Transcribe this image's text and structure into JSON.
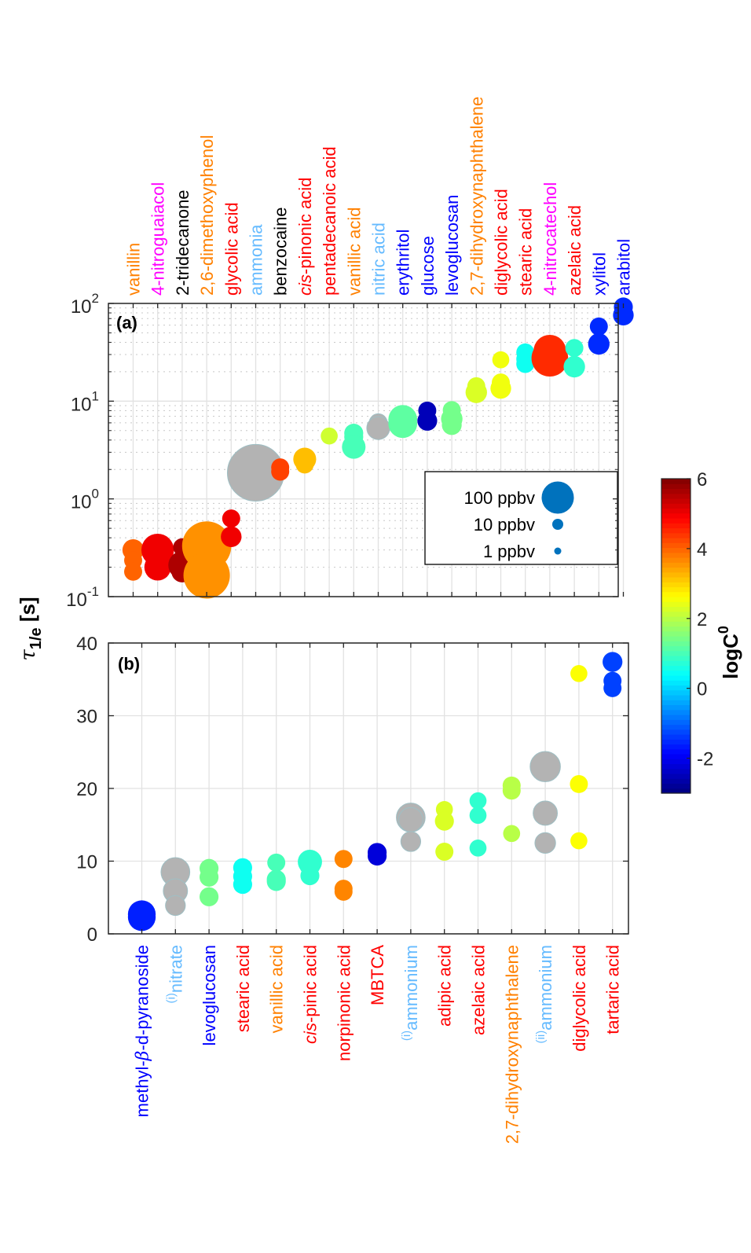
{
  "chart_data": [
    {
      "panel": "(a)",
      "type": "scatter",
      "yscale": "log",
      "ylim": [
        0.1,
        100
      ],
      "ytick_labels": [
        {
          "base": "10",
          "exp": "-1",
          "value": 0.1
        },
        {
          "base": "10",
          "exp": "0",
          "value": 1
        },
        {
          "base": "10",
          "exp": "1",
          "value": 10
        },
        {
          "base": "10",
          "exp": "2",
          "value": 100
        }
      ],
      "grid": "major+minor",
      "label_position": "top",
      "categories": [
        {
          "label": "vanillin",
          "color": "#FF8000"
        },
        {
          "label": "4-nitroguaiacol",
          "color": "#FF00FF"
        },
        {
          "label": "2-tridecanone",
          "color": "#000000"
        },
        {
          "label": "2,6-dimethoxyphenol",
          "color": "#FF8000"
        },
        {
          "label": "glycolic acid",
          "color": "#FF0000"
        },
        {
          "label": "ammonia",
          "color": "#66BBFF"
        },
        {
          "label": "benzocaine",
          "color": "#000000"
        },
        {
          "label": "cis-pinonic acid",
          "color": "#FF0000",
          "italic_prefix": "cis",
          "rest": "-pinonic acid"
        },
        {
          "label": "pentadecanoic acid",
          "color": "#FF0000"
        },
        {
          "label": "vanillic acid",
          "color": "#FF8000"
        },
        {
          "label": "nitric acid",
          "color": "#66BBFF"
        },
        {
          "label": "erythritol",
          "color": "#0000FF"
        },
        {
          "label": "glucose",
          "color": "#0000FF"
        },
        {
          "label": "levoglucosan",
          "color": "#0000FF"
        },
        {
          "label": "2,7-dihydroxynaphthalene",
          "color": "#FF8000"
        },
        {
          "label": "diglycolic acid",
          "color": "#FF0000"
        },
        {
          "label": "stearic acid",
          "color": "#FF0000"
        },
        {
          "label": "4-nitrocatechol",
          "color": "#FF00FF"
        },
        {
          "label": "azelaic acid",
          "color": "#FF0000"
        },
        {
          "label": "xylitol",
          "color": "#0000FF"
        },
        {
          "label": "arabitol",
          "color": "#0000FF"
        }
      ],
      "points": [
        {
          "cat": 0,
          "y": 0.3,
          "ppbv": 10,
          "logC0": 4.0
        },
        {
          "cat": 0,
          "y": 0.235,
          "ppbv": 6,
          "logC0": 4.0
        },
        {
          "cat": 0,
          "y": 0.18,
          "ppbv": 6,
          "logC0": 4.0
        },
        {
          "cat": 1,
          "y": 0.3,
          "ppbv": 30,
          "logC0": 5.0
        },
        {
          "cat": 1,
          "y": 0.2,
          "ppbv": 18,
          "logC0": 5.0
        },
        {
          "cat": 2,
          "y": 0.32,
          "ppbv": 6,
          "logC0": 5.6
        },
        {
          "cat": 2,
          "y": 0.21,
          "ppbv": 20,
          "logC0": 5.6
        },
        {
          "cat": 2,
          "y": 0.18,
          "ppbv": 10,
          "logC0": 5.6
        },
        {
          "cat": 3,
          "y": 0.33,
          "ppbv": 80,
          "logC0": 3.6
        },
        {
          "cat": 3,
          "y": 0.2,
          "ppbv": 8,
          "logC0": 3.6
        },
        {
          "cat": 3,
          "y": 0.165,
          "ppbv": 70,
          "logC0": 3.6
        },
        {
          "cat": 4,
          "y": 0.63,
          "ppbv": 6,
          "logC0": 5.0
        },
        {
          "cat": 4,
          "y": 0.41,
          "ppbv": 9,
          "logC0": 5.0
        },
        {
          "cat": 5,
          "y": 1.85,
          "ppbv": 110,
          "logC0": null
        },
        {
          "cat": 6,
          "y": 2.1,
          "ppbv": 6,
          "logC0": 4.3
        },
        {
          "cat": 6,
          "y": 1.9,
          "ppbv": 6,
          "logC0": 4.3
        },
        {
          "cat": 7,
          "y": 2.55,
          "ppbv": 12,
          "logC0": 3.2
        },
        {
          "cat": 7,
          "y": 2.25,
          "ppbv": 6,
          "logC0": 3.2
        },
        {
          "cat": 8,
          "y": 4.4,
          "ppbv": 5,
          "logC0": 2.2
        },
        {
          "cat": 9,
          "y": 4.7,
          "ppbv": 7,
          "logC0": 1.0
        },
        {
          "cat": 9,
          "y": 4.3,
          "ppbv": 7,
          "logC0": 1.0
        },
        {
          "cat": 9,
          "y": 3.4,
          "ppbv": 13,
          "logC0": 1.0
        },
        {
          "cat": 10,
          "y": 6.0,
          "ppbv": 6,
          "logC0": null
        },
        {
          "cat": 10,
          "y": 5.3,
          "ppbv": 12,
          "logC0": null
        },
        {
          "cat": 11,
          "y": 6.5,
          "ppbv": 22,
          "logC0": 1.2
        },
        {
          "cat": 11,
          "y": 5.9,
          "ppbv": 22,
          "logC0": 1.2
        },
        {
          "cat": 12,
          "y": 8.0,
          "ppbv": 6,
          "logC0": -2.5
        },
        {
          "cat": 12,
          "y": 6.3,
          "ppbv": 8,
          "logC0": -2.5
        },
        {
          "cat": 13,
          "y": 8.1,
          "ppbv": 6,
          "logC0": 1.4
        },
        {
          "cat": 13,
          "y": 6.6,
          "ppbv": 10,
          "logC0": 1.4
        },
        {
          "cat": 13,
          "y": 5.7,
          "ppbv": 8,
          "logC0": 1.4
        },
        {
          "cat": 14,
          "y": 14.2,
          "ppbv": 6,
          "logC0": 2.3
        },
        {
          "cat": 14,
          "y": 12.3,
          "ppbv": 10,
          "logC0": 2.3
        },
        {
          "cat": 15,
          "y": 26.5,
          "ppbv": 5,
          "logC0": 2.5
        },
        {
          "cat": 15,
          "y": 15.5,
          "ppbv": 6,
          "logC0": 2.5
        },
        {
          "cat": 15,
          "y": 13.5,
          "ppbv": 9,
          "logC0": 2.5
        },
        {
          "cat": 16,
          "y": 31.5,
          "ppbv": 6,
          "logC0": 0.5
        },
        {
          "cat": 16,
          "y": 27.0,
          "ppbv": 6,
          "logC0": 0.5
        },
        {
          "cat": 16,
          "y": 24.0,
          "ppbv": 6,
          "logC0": 0.5
        },
        {
          "cat": 17,
          "y": 32.5,
          "ppbv": 30,
          "logC0": 4.5
        },
        {
          "cat": 17,
          "y": 27.5,
          "ppbv": 40,
          "logC0": 4.5
        },
        {
          "cat": 18,
          "y": 35.0,
          "ppbv": 6,
          "logC0": 0.8
        },
        {
          "cat": 18,
          "y": 22.5,
          "ppbv": 10,
          "logC0": 0.8
        },
        {
          "cat": 19,
          "y": 58.0,
          "ppbv": 6,
          "logC0": -1.5
        },
        {
          "cat": 19,
          "y": 38.5,
          "ppbv": 10,
          "logC0": -1.5
        },
        {
          "cat": 20,
          "y": 92.0,
          "ppbv": 7,
          "logC0": -1.5
        },
        {
          "cat": 20,
          "y": 76.0,
          "ppbv": 9,
          "logC0": -1.5
        }
      ],
      "legend": {
        "placement": "lower-right",
        "entries": [
          {
            "label": "100 ppbv",
            "ppbv": 100
          },
          {
            "label": "10 ppbv",
            "ppbv": 10
          },
          {
            "label": "1 ppbv",
            "ppbv": 1
          }
        ],
        "color": "#0072BD"
      }
    },
    {
      "panel": "(b)",
      "type": "scatter",
      "yscale": "linear",
      "ylim": [
        0,
        40
      ],
      "yticks": [
        0,
        10,
        20,
        30,
        40
      ],
      "grid": "major",
      "label_position": "bottom",
      "categories": [
        {
          "label": "methyl-β-d-pyranoside",
          "prefix": "methyl-",
          "greek": "β",
          "rest": "-d-pyranoside",
          "color": "#0000FF"
        },
        {
          "label": "(i)nitrate",
          "super": "(i)",
          "rest": "nitrate",
          "color": "#66BBFF"
        },
        {
          "label": "levoglucosan",
          "color": "#0000FF"
        },
        {
          "label": "stearic acid",
          "color": "#FF0000"
        },
        {
          "label": "vanillic acid",
          "color": "#FF8000"
        },
        {
          "label": "cis-pinic acid",
          "italic_prefix": "cis",
          "rest": "-pinic acid",
          "color": "#FF0000"
        },
        {
          "label": "norpinonic acid",
          "color": "#FF0000"
        },
        {
          "label": "MBTCA",
          "color": "#FF0000"
        },
        {
          "label": "(i)ammonium",
          "super": "(i)",
          "rest": "ammonium",
          "color": "#66BBFF"
        },
        {
          "label": "adipic acid",
          "color": "#FF0000"
        },
        {
          "label": "azelaic acid",
          "color": "#FF0000"
        },
        {
          "label": "2,7-dihydroxynaphthalene",
          "color": "#FF8000"
        },
        {
          "label": "(ii)ammonium",
          "super": "(ii)",
          "rest": "ammonium",
          "color": "#66BBFF"
        },
        {
          "label": "diglycolic acid",
          "color": "#FF0000"
        },
        {
          "label": "tartaric acid",
          "color": "#FF0000"
        }
      ],
      "points": [
        {
          "cat": 0,
          "y": 2.7,
          "ppbv": 20,
          "logC0": -1.6
        },
        {
          "cat": 0,
          "y": 2.3,
          "ppbv": 20,
          "logC0": -1.6
        },
        {
          "cat": 1,
          "y": 8.5,
          "ppbv": 22,
          "logC0": null
        },
        {
          "cat": 1,
          "y": 5.9,
          "ppbv": 14,
          "logC0": null
        },
        {
          "cat": 1,
          "y": 3.9,
          "ppbv": 8,
          "logC0": null
        },
        {
          "cat": 2,
          "y": 9.0,
          "ppbv": 7,
          "logC0": 1.4
        },
        {
          "cat": 2,
          "y": 7.8,
          "ppbv": 7,
          "logC0": 1.4
        },
        {
          "cat": 2,
          "y": 5.1,
          "ppbv": 7,
          "logC0": 1.4
        },
        {
          "cat": 3,
          "y": 9.1,
          "ppbv": 7,
          "logC0": 0.5
        },
        {
          "cat": 3,
          "y": 7.9,
          "ppbv": 7,
          "logC0": 0.5
        },
        {
          "cat": 3,
          "y": 6.8,
          "ppbv": 7,
          "logC0": 0.5
        },
        {
          "cat": 4,
          "y": 9.8,
          "ppbv": 6,
          "logC0": 1.0
        },
        {
          "cat": 4,
          "y": 7.5,
          "ppbv": 7,
          "logC0": 1.0
        },
        {
          "cat": 4,
          "y": 7.2,
          "ppbv": 7,
          "logC0": 1.0
        },
        {
          "cat": 5,
          "y": 9.9,
          "ppbv": 14,
          "logC0": 0.8
        },
        {
          "cat": 5,
          "y": 9.5,
          "ppbv": 10,
          "logC0": 0.8
        },
        {
          "cat": 5,
          "y": 8.0,
          "ppbv": 7,
          "logC0": 0.8
        },
        {
          "cat": 6,
          "y": 10.3,
          "ppbv": 6,
          "logC0": 3.7
        },
        {
          "cat": 6,
          "y": 6.2,
          "ppbv": 6,
          "logC0": 3.7
        },
        {
          "cat": 6,
          "y": 5.8,
          "ppbv": 6,
          "logC0": 3.7
        },
        {
          "cat": 7,
          "y": 11.2,
          "ppbv": 7,
          "logC0": -2.2
        },
        {
          "cat": 7,
          "y": 10.7,
          "ppbv": 7,
          "logC0": -2.2
        },
        {
          "cat": 8,
          "y": 16.0,
          "ppbv": 22,
          "logC0": null
        },
        {
          "cat": 8,
          "y": 15.7,
          "ppbv": 14,
          "logC0": null
        },
        {
          "cat": 8,
          "y": 12.7,
          "ppbv": 8,
          "logC0": null
        },
        {
          "cat": 9,
          "y": 17.1,
          "ppbv": 5,
          "logC0": 2.3
        },
        {
          "cat": 9,
          "y": 15.5,
          "ppbv": 7,
          "logC0": 2.3
        },
        {
          "cat": 9,
          "y": 11.3,
          "ppbv": 6,
          "logC0": 2.3
        },
        {
          "cat": 10,
          "y": 18.3,
          "ppbv": 5,
          "logC0": 0.8
        },
        {
          "cat": 10,
          "y": 16.3,
          "ppbv": 5,
          "logC0": 0.8
        },
        {
          "cat": 10,
          "y": 11.8,
          "ppbv": 5,
          "logC0": 0.8
        },
        {
          "cat": 11,
          "y": 20.4,
          "ppbv": 6,
          "logC0": 2.0
        },
        {
          "cat": 11,
          "y": 19.7,
          "ppbv": 6,
          "logC0": 2.0
        },
        {
          "cat": 11,
          "y": 13.8,
          "ppbv": 5,
          "logC0": 2.0
        },
        {
          "cat": 12,
          "y": 23.0,
          "ppbv": 25,
          "logC0": null
        },
        {
          "cat": 12,
          "y": 16.6,
          "ppbv": 14,
          "logC0": null
        },
        {
          "cat": 12,
          "y": 12.5,
          "ppbv": 9,
          "logC0": null
        },
        {
          "cat": 13,
          "y": 35.8,
          "ppbv": 5,
          "logC0": 2.6
        },
        {
          "cat": 13,
          "y": 20.6,
          "ppbv": 6,
          "logC0": 2.6
        },
        {
          "cat": 13,
          "y": 12.8,
          "ppbv": 5,
          "logC0": 2.6
        },
        {
          "cat": 14,
          "y": 37.4,
          "ppbv": 8,
          "logC0": -1.3
        },
        {
          "cat": 14,
          "y": 34.8,
          "ppbv": 6,
          "logC0": -1.3
        },
        {
          "cat": 14,
          "y": 33.8,
          "ppbv": 6,
          "logC0": -1.3
        }
      ]
    }
  ],
  "shared": {
    "ylabel": {
      "symbol": "τ",
      "subscript": "1/e",
      "unit": " [s]"
    },
    "colorbar": {
      "colormap": "jet",
      "label": {
        "base": "logC",
        "sup": "0"
      },
      "range": [
        -3,
        6
      ],
      "ticks": [
        -2,
        0,
        2,
        4,
        6
      ],
      "tick_labels": [
        "-2",
        "0",
        "2",
        "4",
        "6"
      ]
    },
    "no_c0_color": "#B3B3B3"
  }
}
